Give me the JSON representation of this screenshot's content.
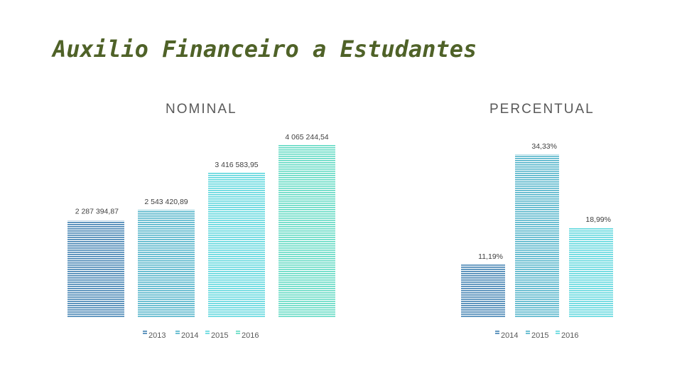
{
  "slide": {
    "title": "Auxilio Financeiro a Estudantes"
  },
  "chart_data": [
    {
      "type": "bar",
      "title": "NOMINAL",
      "categories": [
        "2013",
        "2014",
        "2015",
        "2016"
      ],
      "values": [
        2287394.87,
        2543420.89,
        3416583.95,
        4065244.54
      ],
      "data_labels": [
        "2 287 394,87",
        "2 543 420,89",
        "3 416 583,95",
        "4 065 244,54"
      ],
      "legend": [
        "2013",
        "2014",
        "2015",
        "2016"
      ],
      "legend_position": "bottom",
      "colors": [
        "#3e7fb0",
        "#4db1c8",
        "#5ad6dc",
        "#5dd9c1"
      ],
      "ylim": [
        0,
        4300000
      ],
      "grid": false
    },
    {
      "type": "bar",
      "title": "PERCENTUAL",
      "categories": [
        "2014",
        "2015",
        "2016"
      ],
      "values": [
        11.19,
        34.33,
        18.99
      ],
      "data_labels": [
        "11,19%",
        "34,33%",
        "18,99%"
      ],
      "legend": [
        "2014",
        "2015",
        "2016"
      ],
      "legend_position": "bottom",
      "colors": [
        "#3e7fb0",
        "#4db1c8",
        "#5ad6dc"
      ],
      "ylim": [
        0,
        36
      ],
      "grid": false
    }
  ]
}
